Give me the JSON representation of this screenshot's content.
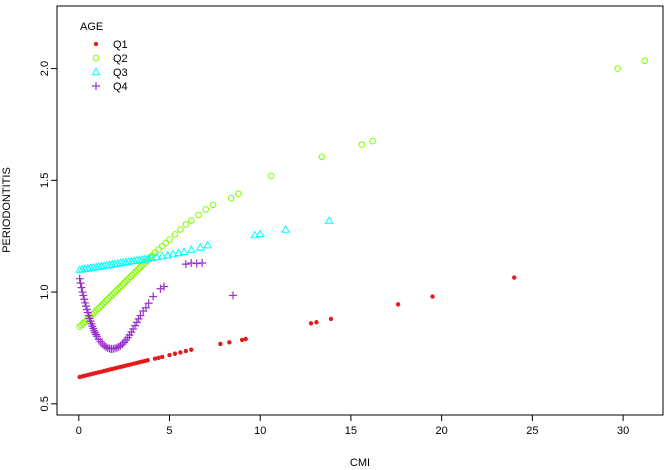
{
  "chart_data": {
    "type": "scatter",
    "xlabel": "CMI",
    "ylabel": "PERIODONTITIS",
    "xlim": [
      -1.2,
      32.2
    ],
    "ylim": [
      0.45,
      2.28
    ],
    "x_ticks": [
      0,
      5,
      10,
      15,
      20,
      25,
      30
    ],
    "y_ticks": [
      0.5,
      1.0,
      1.5,
      2.0
    ],
    "x_tick_labels": [
      "0",
      "5",
      "10",
      "15",
      "20",
      "25",
      "30"
    ],
    "y_tick_labels": [
      "0.5",
      "1.0",
      "1.5",
      "2.0"
    ],
    "legend": {
      "title": "AGE",
      "position": "top-left"
    },
    "series": [
      {
        "name": "Q1",
        "marker": "dot",
        "color": "#e41a1c",
        "points": [
          [
            0.05,
            0.62
          ],
          [
            0.2,
            0.623
          ],
          [
            0.35,
            0.626
          ],
          [
            0.5,
            0.629
          ],
          [
            0.65,
            0.632
          ],
          [
            0.8,
            0.635
          ],
          [
            0.95,
            0.638
          ],
          [
            1.1,
            0.641
          ],
          [
            1.25,
            0.644
          ],
          [
            1.4,
            0.647
          ],
          [
            1.55,
            0.65
          ],
          [
            1.7,
            0.653
          ],
          [
            1.85,
            0.656
          ],
          [
            2.0,
            0.659
          ],
          [
            2.15,
            0.662
          ],
          [
            2.3,
            0.665
          ],
          [
            2.45,
            0.668
          ],
          [
            2.6,
            0.671
          ],
          [
            2.75,
            0.674
          ],
          [
            2.9,
            0.677
          ],
          [
            3.05,
            0.68
          ],
          [
            3.2,
            0.683
          ],
          [
            3.35,
            0.686
          ],
          [
            3.5,
            0.689
          ],
          [
            3.65,
            0.692
          ],
          [
            3.8,
            0.695
          ],
          [
            4.2,
            0.702
          ],
          [
            4.4,
            0.706
          ],
          [
            4.6,
            0.71
          ],
          [
            5.0,
            0.718
          ],
          [
            5.3,
            0.724
          ],
          [
            5.6,
            0.73
          ],
          [
            5.9,
            0.736
          ],
          [
            6.2,
            0.742
          ],
          [
            7.8,
            0.768
          ],
          [
            8.3,
            0.775
          ],
          [
            9.0,
            0.786
          ],
          [
            9.2,
            0.79
          ],
          [
            12.8,
            0.86
          ],
          [
            13.1,
            0.865
          ],
          [
            13.9,
            0.88
          ],
          [
            17.6,
            0.945
          ],
          [
            19.5,
            0.98
          ],
          [
            24.0,
            1.065
          ]
        ]
      },
      {
        "name": "Q2",
        "marker": "circle",
        "color": "#7fff00",
        "points": [
          [
            0.05,
            0.845
          ],
          [
            0.15,
            0.852
          ],
          [
            0.25,
            0.86
          ],
          [
            0.35,
            0.868
          ],
          [
            0.45,
            0.876
          ],
          [
            0.55,
            0.884
          ],
          [
            0.65,
            0.892
          ],
          [
            0.75,
            0.9
          ],
          [
            0.85,
            0.908
          ],
          [
            0.95,
            0.916
          ],
          [
            1.05,
            0.924
          ],
          [
            1.15,
            0.932
          ],
          [
            1.25,
            0.94
          ],
          [
            1.35,
            0.948
          ],
          [
            1.45,
            0.956
          ],
          [
            1.55,
            0.964
          ],
          [
            1.65,
            0.972
          ],
          [
            1.75,
            0.98
          ],
          [
            1.85,
            0.988
          ],
          [
            1.95,
            0.996
          ],
          [
            2.05,
            1.004
          ],
          [
            2.15,
            1.012
          ],
          [
            2.25,
            1.02
          ],
          [
            2.35,
            1.028
          ],
          [
            2.45,
            1.036
          ],
          [
            2.55,
            1.044
          ],
          [
            2.65,
            1.052
          ],
          [
            2.75,
            1.06
          ],
          [
            2.85,
            1.068
          ],
          [
            2.95,
            1.076
          ],
          [
            3.05,
            1.084
          ],
          [
            3.15,
            1.092
          ],
          [
            3.25,
            1.1
          ],
          [
            3.35,
            1.108
          ],
          [
            3.45,
            1.116
          ],
          [
            3.55,
            1.124
          ],
          [
            3.65,
            1.132
          ],
          [
            3.75,
            1.14
          ],
          [
            3.85,
            1.148
          ],
          [
            3.95,
            1.156
          ],
          [
            4.05,
            1.164
          ],
          [
            4.2,
            1.176
          ],
          [
            4.4,
            1.19
          ],
          [
            4.6,
            1.205
          ],
          [
            4.8,
            1.22
          ],
          [
            5.0,
            1.235
          ],
          [
            5.3,
            1.258
          ],
          [
            5.6,
            1.28
          ],
          [
            5.9,
            1.302
          ],
          [
            6.2,
            1.32
          ],
          [
            6.6,
            1.345
          ],
          [
            7.0,
            1.37
          ],
          [
            7.4,
            1.39
          ],
          [
            8.4,
            1.42
          ],
          [
            8.8,
            1.44
          ],
          [
            10.6,
            1.52
          ],
          [
            13.4,
            1.605
          ],
          [
            15.6,
            1.66
          ],
          [
            16.2,
            1.675
          ],
          [
            29.7,
            2.0
          ],
          [
            31.2,
            2.035
          ]
        ]
      },
      {
        "name": "Q3",
        "marker": "triangle",
        "color": "#00ffff",
        "points": [
          [
            0.05,
            1.1
          ],
          [
            0.2,
            1.102
          ],
          [
            0.35,
            1.104
          ],
          [
            0.5,
            1.106
          ],
          [
            0.65,
            1.108
          ],
          [
            0.8,
            1.11
          ],
          [
            0.95,
            1.112
          ],
          [
            1.1,
            1.114
          ],
          [
            1.25,
            1.116
          ],
          [
            1.4,
            1.118
          ],
          [
            1.55,
            1.12
          ],
          [
            1.7,
            1.122
          ],
          [
            1.85,
            1.124
          ],
          [
            2.0,
            1.126
          ],
          [
            2.15,
            1.128
          ],
          [
            2.3,
            1.13
          ],
          [
            2.45,
            1.132
          ],
          [
            2.6,
            1.134
          ],
          [
            2.75,
            1.136
          ],
          [
            2.9,
            1.138
          ],
          [
            3.05,
            1.14
          ],
          [
            3.2,
            1.142
          ],
          [
            3.35,
            1.144
          ],
          [
            3.5,
            1.146
          ],
          [
            3.65,
            1.148
          ],
          [
            3.8,
            1.15
          ],
          [
            4.0,
            1.153
          ],
          [
            4.3,
            1.157
          ],
          [
            4.6,
            1.161
          ],
          [
            4.9,
            1.165
          ],
          [
            5.2,
            1.17
          ],
          [
            5.5,
            1.175
          ],
          [
            5.8,
            1.18
          ],
          [
            6.2,
            1.19
          ],
          [
            6.7,
            1.2
          ],
          [
            7.1,
            1.21
          ],
          [
            9.7,
            1.255
          ],
          [
            10.0,
            1.26
          ],
          [
            11.4,
            1.28
          ],
          [
            13.8,
            1.32
          ]
        ]
      },
      {
        "name": "Q4",
        "marker": "plus",
        "color": "#9932cc",
        "points": [
          [
            0.05,
            1.06
          ],
          [
            0.1,
            1.04
          ],
          [
            0.15,
            1.02
          ],
          [
            0.2,
            1.0
          ],
          [
            0.25,
            0.985
          ],
          [
            0.3,
            0.968
          ],
          [
            0.35,
            0.952
          ],
          [
            0.4,
            0.937
          ],
          [
            0.45,
            0.922
          ],
          [
            0.5,
            0.908
          ],
          [
            0.55,
            0.895
          ],
          [
            0.6,
            0.882
          ],
          [
            0.65,
            0.87
          ],
          [
            0.7,
            0.858
          ],
          [
            0.75,
            0.847
          ],
          [
            0.8,
            0.837
          ],
          [
            0.85,
            0.827
          ],
          [
            0.9,
            0.818
          ],
          [
            0.95,
            0.81
          ],
          [
            1.0,
            0.802
          ],
          [
            1.1,
            0.789
          ],
          [
            1.2,
            0.778
          ],
          [
            1.3,
            0.768
          ],
          [
            1.4,
            0.76
          ],
          [
            1.5,
            0.754
          ],
          [
            1.6,
            0.75
          ],
          [
            1.7,
            0.747
          ],
          [
            1.8,
            0.746
          ],
          [
            1.9,
            0.746
          ],
          [
            2.0,
            0.748
          ],
          [
            2.1,
            0.751
          ],
          [
            2.2,
            0.755
          ],
          [
            2.3,
            0.76
          ],
          [
            2.4,
            0.767
          ],
          [
            2.5,
            0.775
          ],
          [
            2.6,
            0.785
          ],
          [
            2.7,
            0.796
          ],
          [
            2.8,
            0.808
          ],
          [
            2.9,
            0.821
          ],
          [
            3.0,
            0.835
          ],
          [
            3.1,
            0.85
          ],
          [
            3.2,
            0.865
          ],
          [
            3.3,
            0.88
          ],
          [
            3.4,
            0.895
          ],
          [
            3.55,
            0.915
          ],
          [
            3.7,
            0.93
          ],
          [
            3.85,
            0.95
          ],
          [
            4.1,
            0.98
          ],
          [
            4.5,
            1.015
          ],
          [
            4.7,
            1.025
          ],
          [
            5.9,
            1.125
          ],
          [
            6.2,
            1.13
          ],
          [
            6.5,
            1.128
          ],
          [
            6.8,
            1.13
          ],
          [
            8.5,
            0.985
          ]
        ]
      }
    ]
  }
}
